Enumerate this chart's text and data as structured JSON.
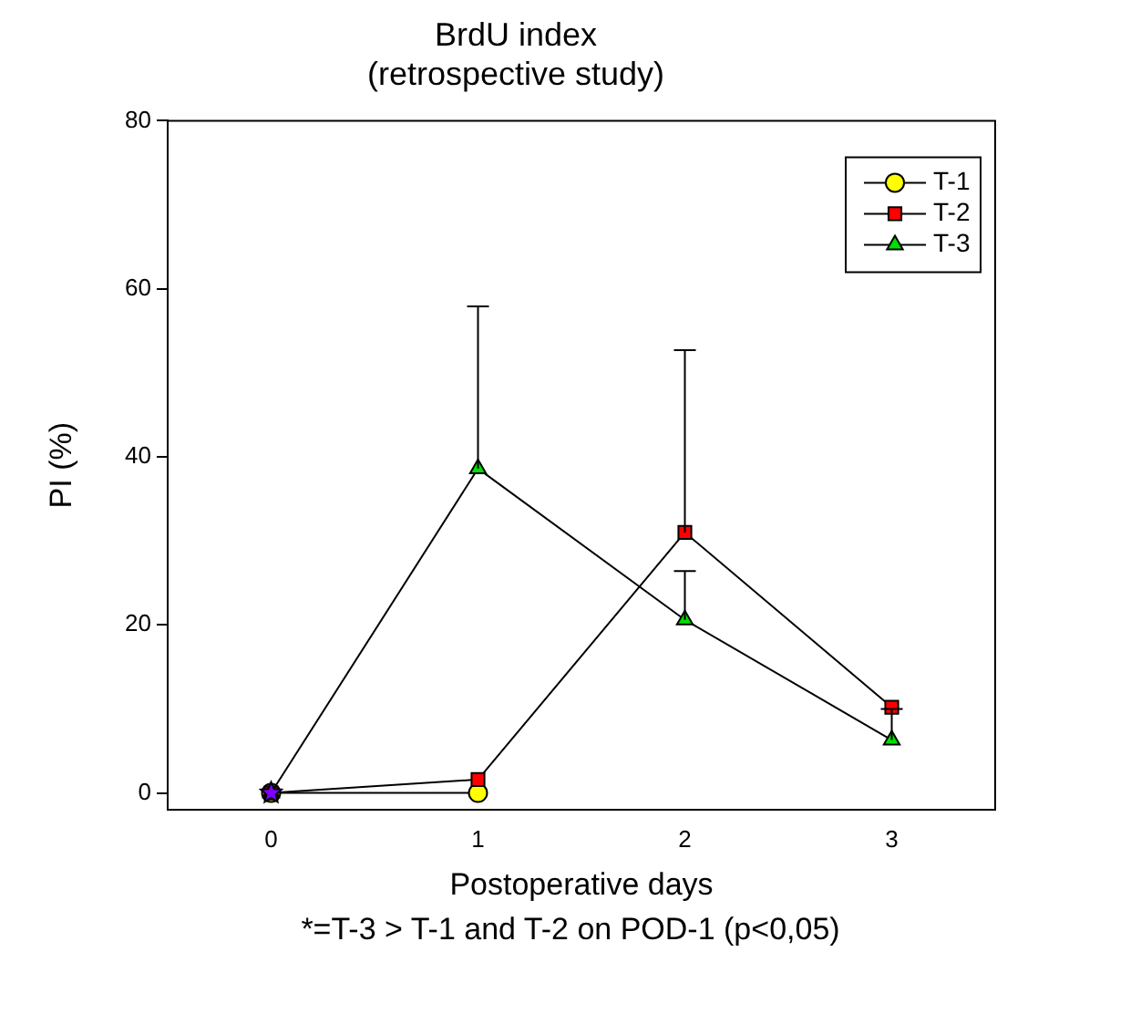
{
  "chart_data": {
    "type": "line",
    "title": "BrdU index",
    "subtitle": "(retrospective study)",
    "xlabel": "Postoperative days",
    "ylabel": "PI (%)",
    "x": [
      0,
      1,
      2,
      3
    ],
    "xlim": [
      -0.5,
      3.5
    ],
    "xticks": [
      0,
      1,
      2,
      3
    ],
    "ylim": [
      -2,
      80
    ],
    "yticks": [
      0,
      20,
      40,
      60,
      80
    ],
    "grid": false,
    "legend": "top right",
    "line_style": "solid",
    "series": [
      {
        "name": "T-1",
        "color": "#ffff00",
        "marker": "circle",
        "values": [
          0,
          0,
          null,
          null
        ]
      },
      {
        "name": "T-2",
        "color": "#ff0000",
        "marker": "square",
        "values": [
          0,
          1.6,
          31,
          10.2
        ],
        "errors": [
          null,
          null,
          [
            31,
            52.7
          ],
          null
        ]
      },
      {
        "name": "T-3",
        "color": "#00e000",
        "marker": "triangle",
        "values": [
          0,
          38.6,
          20.6,
          6.3
        ],
        "errors": [
          null,
          [
            38.6,
            57.9
          ],
          [
            20.6,
            26.4
          ],
          [
            6.3,
            10
          ]
        ]
      },
      {
        "color": "#8000ff",
        "marker": "star",
        "values": [
          0,
          null,
          null,
          null
        ]
      }
    ],
    "annotations": [
      "*=T-3 > T-1 and T-2 on POD-1 (p<0,05)"
    ]
  }
}
